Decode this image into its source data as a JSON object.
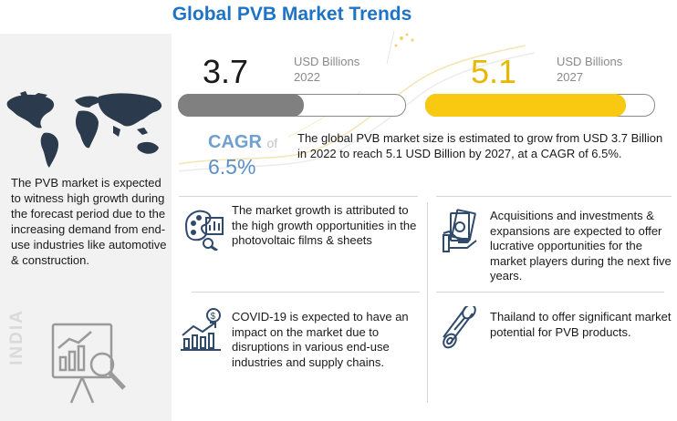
{
  "title": "Global PVB Market Trends",
  "left_panel": {
    "description": "The PVB market is expected to witness high growth during the forecast period due to the increasing demand from end-use industries like automotive & construction.",
    "region_label": "INDIA"
  },
  "market_2022": {
    "value": "3.7",
    "unit": "USD Billions",
    "year": "2022",
    "bar_color": "#808080"
  },
  "market_2027": {
    "value": "5.1",
    "unit": "USD Billions",
    "year": "2027",
    "bar_color": "#f9c810",
    "value_color": "#e8b800"
  },
  "cagr": {
    "label": "CAGR",
    "of": "of",
    "value": "6.5%"
  },
  "summary": "The global PVB market size is estimated to grow from USD 3.7 Billion in 2022 to reach 5.1 USD Billion by 2027, at a CAGR of 6.5%.",
  "cards": {
    "growth": "The market growth is attributed to the high growth opportunities in the photovoltaic films & sheets",
    "acquisitions": "Acquisitions and investments & expansions are expected to offer lucrative opportunities for the market players during the next five years.",
    "covid": "COVID-19 is expected to have an impact on the market due to disruptions in various end-use industries and supply chains.",
    "thailand": "Thailand to offer significant market potential for PVB products."
  },
  "icons": {
    "world_map": "world-map-icon",
    "analytics": "analytics-board-icon",
    "design": "palette-chart-icon",
    "money": "money-hand-icon",
    "growth_chart": "growth-chart-icon",
    "roll": "pvb-film-roll-icon"
  }
}
